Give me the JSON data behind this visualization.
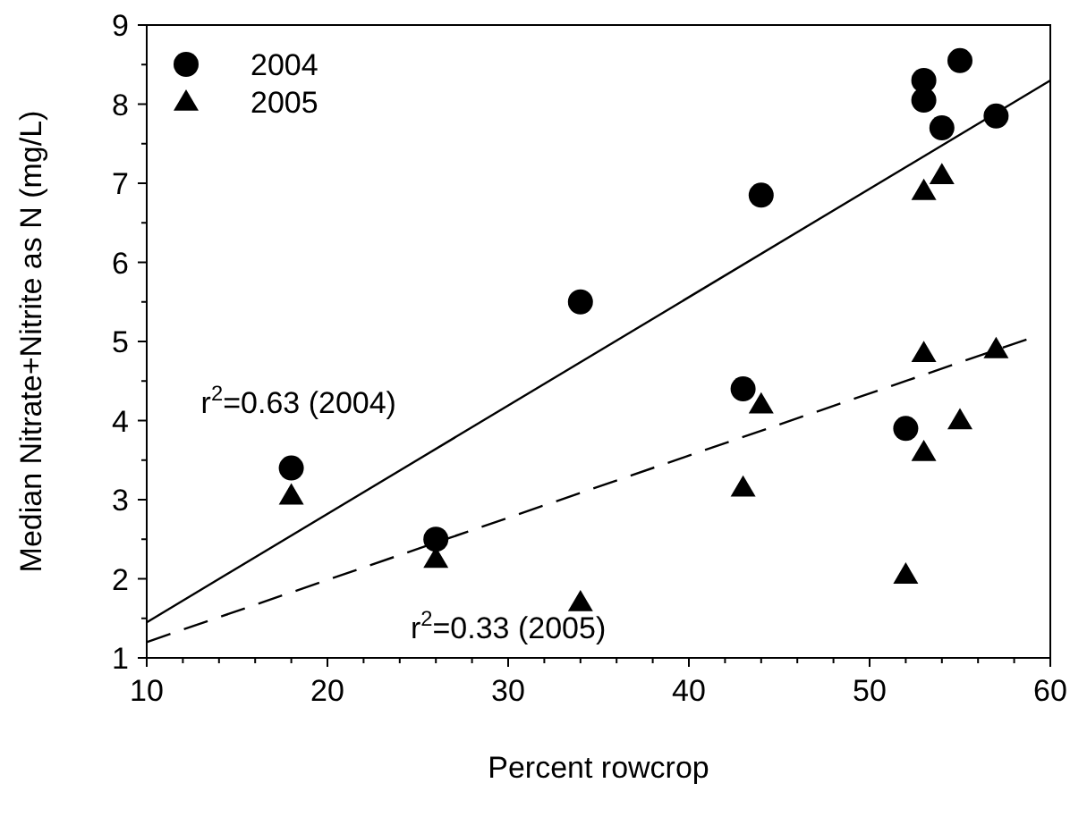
{
  "chart_data": {
    "type": "scatter",
    "xlabel": "Percent rowcrop",
    "ylabel": "Median Nitrate+Nitrite as N (mg/L)",
    "xlim": [
      10,
      60
    ],
    "ylim": [
      1,
      9
    ],
    "xticks": [
      10,
      {
        "value": 12,
        "label": null
      },
      {
        "value": 14,
        "label": null
      },
      {
        "value": 16,
        "label": null
      },
      {
        "value": 18,
        "label": null
      },
      20,
      {
        "value": 22,
        "label": null
      },
      {
        "value": 24,
        "label": null
      },
      {
        "value": 26,
        "label": null
      },
      {
        "value": 28,
        "label": null
      },
      30,
      {
        "value": 32,
        "label": null
      },
      {
        "value": 34,
        "label": null
      },
      {
        "value": 36,
        "label": null
      },
      {
        "value": 38,
        "label": null
      },
      40,
      {
        "value": 42,
        "label": null
      },
      {
        "value": 44,
        "label": null
      },
      {
        "value": 46,
        "label": null
      },
      {
        "value": 48,
        "label": null
      },
      50,
      {
        "value": 52,
        "label": null
      },
      {
        "value": 54,
        "label": null
      },
      {
        "value": 56,
        "label": null
      },
      {
        "value": 58,
        "label": null
      },
      60
    ],
    "yticks": [
      1,
      {
        "value": 1.5,
        "label": null
      },
      2,
      {
        "value": 2.5,
        "label": null
      },
      3,
      {
        "value": 3.5,
        "label": null
      },
      4,
      {
        "value": 4.5,
        "label": null
      },
      5,
      {
        "value": 5.5,
        "label": null
      },
      6,
      {
        "value": 6.5,
        "label": null
      },
      7,
      {
        "value": 7.5,
        "label": null
      },
      8,
      {
        "value": 8.5,
        "label": null
      },
      9
    ],
    "grid": false,
    "legend": "top left",
    "annotations": [
      "r$^{2}$=0.63 (2004)",
      "r$^{2}$=0.33 (2005)"
    ],
    "series": [
      {
        "name": "2004",
        "type": "scatter",
        "marker": "circle",
        "color": "#000000",
        "x": [
          18,
          26,
          34,
          43,
          44,
          52,
          53,
          53,
          54,
          55,
          57
        ],
        "values": [
          3.4,
          2.5,
          5.5,
          4.4,
          6.85,
          3.9,
          8.3,
          8.05,
          7.7,
          8.55,
          7.85
        ]
      },
      {
        "name": "2005",
        "type": "scatter",
        "marker": "triangle",
        "color": "#000000",
        "x": [
          18,
          26,
          34,
          43,
          44,
          52,
          53,
          53,
          53,
          54,
          55,
          57
        ],
        "values": [
          3.05,
          2.25,
          1.7,
          3.15,
          4.2,
          2.05,
          3.6,
          4.85,
          6.9,
          7.1,
          4.0,
          4.9
        ]
      },
      {
        "type": "line",
        "marker": "none",
        "line_style": "solid",
        "color": "#000000",
        "x": [
          10,
          60
        ],
        "values": [
          1.45,
          8.3
        ]
      },
      {
        "type": "line",
        "marker": "none",
        "line_style": "dashed",
        "color": "#000000",
        "x": [
          10,
          59
        ],
        "values": [
          1.2,
          5.05
        ]
      }
    ]
  }
}
